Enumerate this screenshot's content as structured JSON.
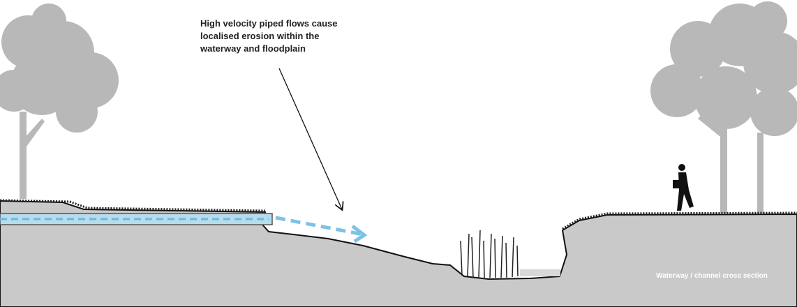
{
  "annotation": {
    "lines": [
      "High velocity piped flows cause",
      "localised erosion within the",
      "waterway and floodplain"
    ]
  },
  "caption": "Waterway / channel cross section"
}
